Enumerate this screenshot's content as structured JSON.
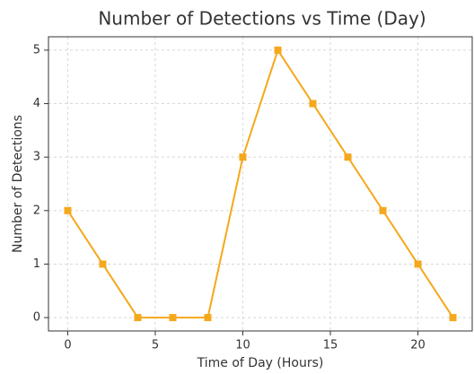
{
  "chart_data": {
    "type": "line",
    "title": "Number of Detections vs Time (Day)",
    "xlabel": "Time of Day (Hours)",
    "ylabel": "Number of Detections",
    "x": [
      0,
      2,
      4,
      6,
      8,
      10,
      12,
      14,
      16,
      18,
      20,
      22
    ],
    "series": [
      {
        "name": "Detections",
        "color": "#f5a81c",
        "values": [
          2,
          1,
          0,
          0,
          0,
          3,
          5,
          4,
          3,
          2,
          1,
          0
        ]
      }
    ],
    "xlim": [
      -1.1,
      23.1
    ],
    "xticks": [
      0,
      5,
      10,
      15,
      20
    ],
    "ylim": [
      -0.25,
      5.25
    ],
    "yticks": [
      0,
      1,
      2,
      3,
      4,
      5
    ],
    "grid": true
  }
}
